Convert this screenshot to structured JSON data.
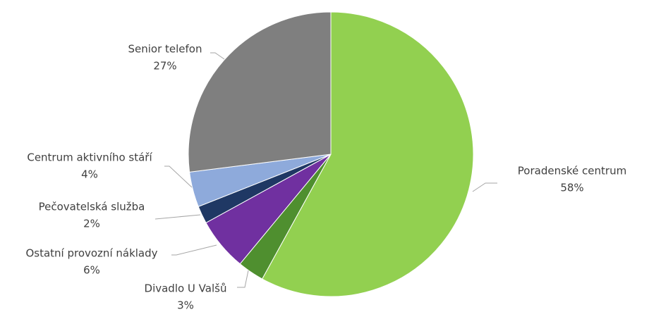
{
  "chart_data": {
    "type": "pie",
    "categories": [
      "Poradenské centrum",
      "Divadlo U Valšů",
      "Ostatní provozní náklady",
      "Pečovatelská služba",
      "Centrum aktivního stáří",
      "Senior telefon"
    ],
    "values": [
      58,
      3,
      6,
      2,
      4,
      27
    ],
    "value_labels": [
      "58%",
      "3%",
      "6%",
      "2%",
      "4%",
      "27%"
    ],
    "colors": [
      "#92d050",
      "#4f8f2f",
      "#7030a0",
      "#1f3864",
      "#8eaadb",
      "#7f7f7f"
    ]
  }
}
